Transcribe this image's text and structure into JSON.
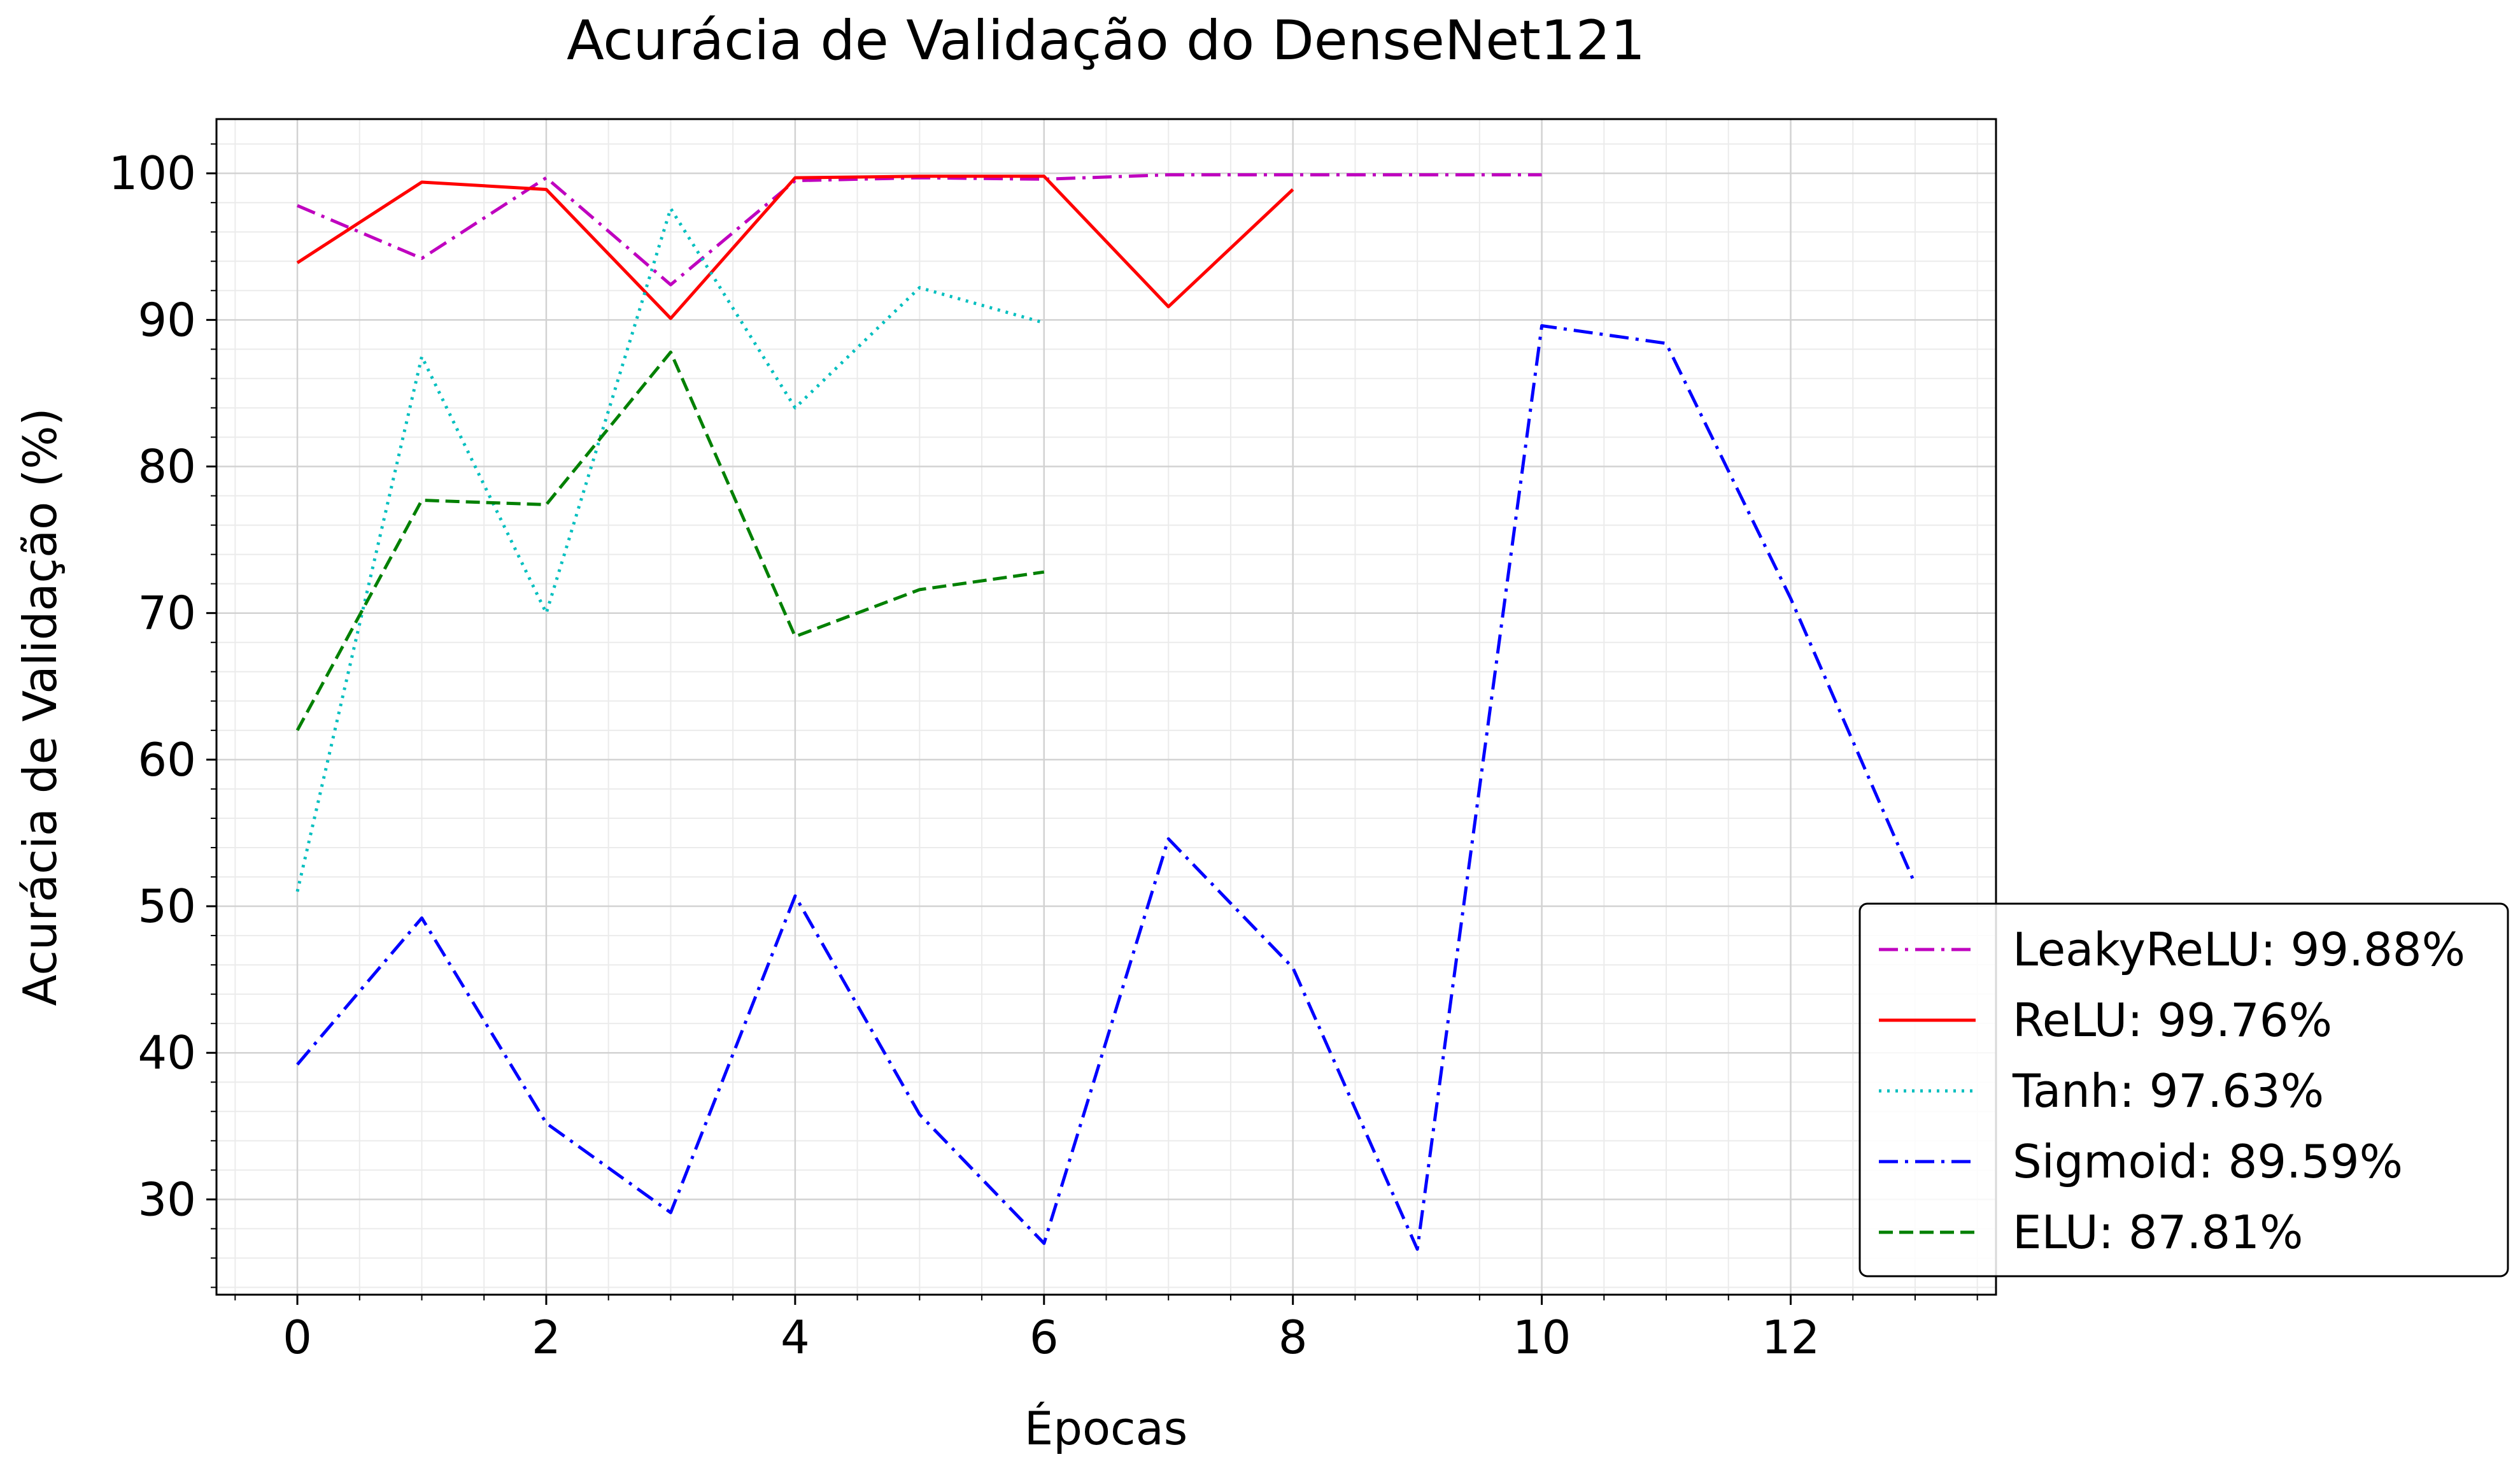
{
  "chart_data": {
    "type": "line",
    "title": "Acurácia de Validação do DenseNet121",
    "xlabel": "Épocas",
    "ylabel": "Acurácia de Validação (%)",
    "xlim": [
      -0.65,
      13.65
    ],
    "ylim": [
      23.5,
      103.7
    ],
    "xticks": [
      0,
      2,
      4,
      6,
      8,
      10,
      12
    ],
    "yticks": [
      30,
      40,
      50,
      60,
      70,
      80,
      90,
      100
    ],
    "grid": true,
    "minor_grid": true,
    "legend_position": "lower-right-outside",
    "series": [
      {
        "name": "LeakyReLU: 99.88%",
        "color": "#bf00bf",
        "dash": "dashdot",
        "x": [
          0,
          1,
          2,
          3,
          4,
          5,
          6,
          7,
          8,
          9,
          10
        ],
        "y": [
          97.8,
          94.2,
          99.7,
          92.4,
          99.5,
          99.7,
          99.6,
          99.9,
          99.9,
          99.9,
          99.9
        ]
      },
      {
        "name": "ReLU: 99.76%",
        "color": "#ff0000",
        "dash": "solid",
        "x": [
          0,
          1,
          2,
          3,
          4,
          5,
          6,
          7,
          8
        ],
        "y": [
          93.9,
          99.4,
          98.9,
          90.1,
          99.7,
          99.8,
          99.8,
          90.9,
          98.9
        ]
      },
      {
        "name": "Tanh: 97.63%",
        "color": "#00bfbf",
        "dash": "dotted",
        "x": [
          0,
          1,
          2,
          3,
          4,
          5,
          6
        ],
        "y": [
          51.0,
          87.5,
          70.0,
          97.6,
          84.0,
          92.2,
          89.8
        ]
      },
      {
        "name": "Sigmoid: 89.59%",
        "color": "#0000ff",
        "dash": "dashdot",
        "x": [
          0,
          1,
          2,
          3,
          4,
          5,
          6,
          7,
          8,
          9,
          10,
          11,
          12,
          13
        ],
        "y": [
          39.2,
          49.2,
          35.2,
          29.1,
          50.7,
          35.8,
          27.0,
          54.6,
          45.8,
          26.6,
          89.6,
          88.4,
          71.0,
          51.5
        ]
      },
      {
        "name": "ELU: 87.81%",
        "color": "#008000",
        "dash": "dashed",
        "x": [
          0,
          1,
          2,
          3,
          4,
          5,
          6
        ],
        "y": [
          62.0,
          77.7,
          77.4,
          87.8,
          68.4,
          71.6,
          72.8
        ]
      }
    ]
  }
}
